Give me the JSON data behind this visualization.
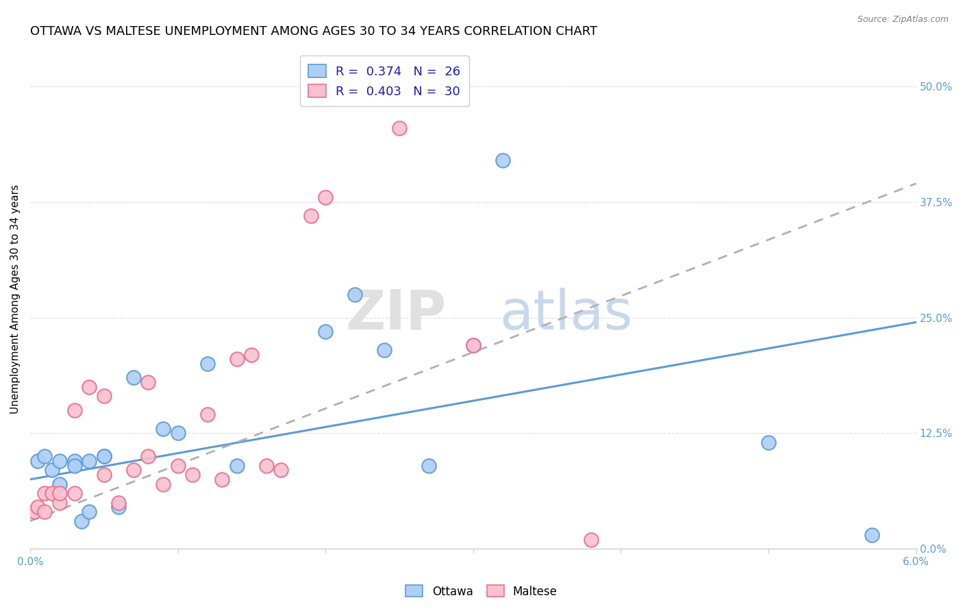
{
  "title": "OTTAWA VS MALTESE UNEMPLOYMENT AMONG AGES 30 TO 34 YEARS CORRELATION CHART",
  "source": "Source: ZipAtlas.com",
  "ylabel": "Unemployment Among Ages 30 to 34 years",
  "xlim": [
    0.0,
    0.06
  ],
  "ylim": [
    0.0,
    0.54
  ],
  "ytick_positions": [
    0.0,
    0.125,
    0.25,
    0.375,
    0.5
  ],
  "ytick_labels": [
    "0.0%",
    "12.5%",
    "25.0%",
    "37.5%",
    "50.0%"
  ],
  "ottawa_color": "#aecff5",
  "ottawa_edge_color": "#5b9bd5",
  "maltese_color": "#f9c0d0",
  "maltese_edge_color": "#e87090",
  "ottawa_R": 0.374,
  "ottawa_N": 26,
  "maltese_R": 0.403,
  "maltese_N": 30,
  "ottawa_trend_y0": 0.075,
  "ottawa_trend_y1": 0.245,
  "maltese_trend_y0": 0.03,
  "maltese_trend_y1": 0.395,
  "grid_color": "#dddddd",
  "background_color": "#ffffff",
  "title_fontsize": 13,
  "axis_label_fontsize": 11,
  "tick_fontsize": 11,
  "legend_fontsize": 13,
  "ottawa_x": [
    0.0005,
    0.001,
    0.0015,
    0.002,
    0.002,
    0.003,
    0.003,
    0.0035,
    0.004,
    0.004,
    0.005,
    0.005,
    0.006,
    0.007,
    0.009,
    0.01,
    0.012,
    0.014,
    0.02,
    0.022,
    0.024,
    0.027,
    0.03,
    0.032,
    0.05,
    0.057
  ],
  "ottawa_y": [
    0.095,
    0.1,
    0.085,
    0.095,
    0.07,
    0.095,
    0.09,
    0.03,
    0.095,
    0.04,
    0.1,
    0.1,
    0.045,
    0.185,
    0.13,
    0.125,
    0.2,
    0.09,
    0.235,
    0.275,
    0.215,
    0.09,
    0.22,
    0.42,
    0.115,
    0.015
  ],
  "maltese_x": [
    0.0003,
    0.0005,
    0.001,
    0.001,
    0.0015,
    0.002,
    0.002,
    0.003,
    0.003,
    0.004,
    0.005,
    0.005,
    0.006,
    0.007,
    0.008,
    0.008,
    0.009,
    0.01,
    0.011,
    0.012,
    0.013,
    0.014,
    0.015,
    0.016,
    0.017,
    0.019,
    0.02,
    0.025,
    0.03,
    0.038
  ],
  "maltese_y": [
    0.04,
    0.045,
    0.06,
    0.04,
    0.06,
    0.05,
    0.06,
    0.06,
    0.15,
    0.175,
    0.08,
    0.165,
    0.05,
    0.085,
    0.18,
    0.1,
    0.07,
    0.09,
    0.08,
    0.145,
    0.075,
    0.205,
    0.21,
    0.09,
    0.085,
    0.36,
    0.38,
    0.455,
    0.22,
    0.01
  ]
}
